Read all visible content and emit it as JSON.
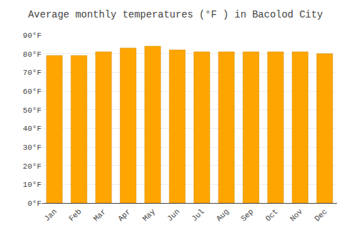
{
  "chart_data": {
    "type": "bar",
    "title": "Average monthly temperatures (°F ) in Bacolod City",
    "categories": [
      "Jan",
      "Feb",
      "Mar",
      "Apr",
      "May",
      "Jun",
      "Jul",
      "Aug",
      "Sep",
      "Oct",
      "Nov",
      "Dec"
    ],
    "values": [
      79,
      79,
      81,
      83,
      84,
      82,
      81,
      81,
      81,
      81,
      81,
      80
    ],
    "color": "#FFA500",
    "ylim": [
      0,
      90
    ],
    "yticks": [
      {
        "value": 0,
        "label": "0°F"
      },
      {
        "value": 10,
        "label": "10°F"
      },
      {
        "value": 20,
        "label": "20°F"
      },
      {
        "value": 30,
        "label": "30°F"
      },
      {
        "value": 40,
        "label": "40°F"
      },
      {
        "value": 50,
        "label": "50°F"
      },
      {
        "value": 60,
        "label": "60°F"
      },
      {
        "value": 70,
        "label": "70°F"
      },
      {
        "value": 80,
        "label": "80°F"
      },
      {
        "value": 90,
        "label": "90°F"
      }
    ],
    "grid": true
  }
}
